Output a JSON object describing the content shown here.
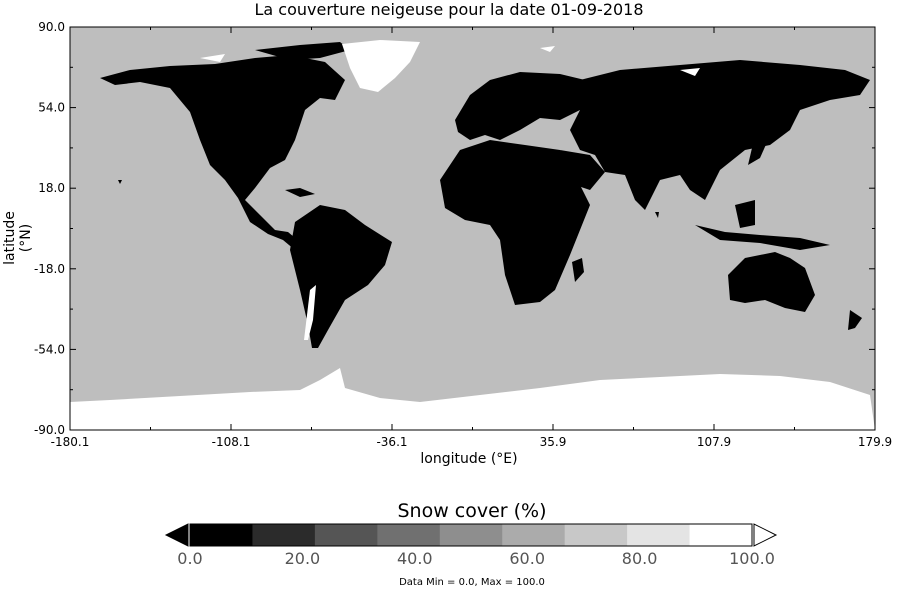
{
  "title": "La couverture neigeuse pour la date 01-09-2018",
  "x_axis": {
    "label": "longitude (°E)",
    "ticks": [
      "-180.1",
      "-108.1",
      "-36.1",
      "35.9",
      "107.9",
      "179.9"
    ],
    "range": [
      -180.1,
      179.9
    ]
  },
  "y_axis": {
    "label": "latitude (°N)",
    "ticks": [
      "90.0",
      "54.0",
      "18.0",
      "-18.0",
      "-54.0",
      "-90.0"
    ],
    "range": [
      -90.0,
      90.0
    ]
  },
  "colorbar": {
    "title": "Snow cover (%)",
    "labels": [
      "0.0",
      "20.0",
      "40.0",
      "60.0",
      "80.0",
      "100.0"
    ],
    "colors": [
      "#000000",
      "#2b2b2b",
      "#555555",
      "#707070",
      "#8e8e8e",
      "#ababab",
      "#c8c8c8",
      "#e4e4e4",
      "#ffffff"
    ],
    "extend": "both"
  },
  "data_range": "Data Min = 0.0, Max = 100.0",
  "colors": {
    "ocean": "#bebebe",
    "land_no_snow": "#000000",
    "snow": "#ffffff"
  }
}
